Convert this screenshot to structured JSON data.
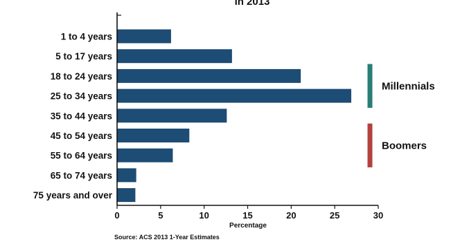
{
  "chart_data": {
    "type": "bar",
    "orientation": "horizontal",
    "title": "in 2013",
    "categories": [
      "1 to 4 years",
      "5 to 17 years",
      "18 to 24 years",
      "25 to 34 years",
      "35 to 44 years",
      "45 to 54 years",
      "55 to 64 years",
      "65 to 74 years",
      "75 years and over"
    ],
    "values": [
      6.2,
      13.2,
      21.1,
      26.9,
      12.6,
      8.3,
      6.4,
      2.2,
      2.1
    ],
    "xlabel": "Percentage",
    "ylabel": "",
    "xlim": [
      0,
      30
    ],
    "xticks": [
      0,
      5,
      10,
      15,
      20,
      25,
      30
    ],
    "grid": false,
    "bar_color": "#1d4c75",
    "annotations": [
      {
        "label": "Millennials",
        "color": "#2a7d74",
        "spans": [
          "18 to 24 years",
          "25 to 34 years"
        ]
      },
      {
        "label": "Boomers",
        "color": "#b5413f",
        "spans": [
          "45 to 54 years",
          "55 to 64 years"
        ]
      }
    ],
    "source": "Source: ACS 2013 1-Year Estimates"
  }
}
